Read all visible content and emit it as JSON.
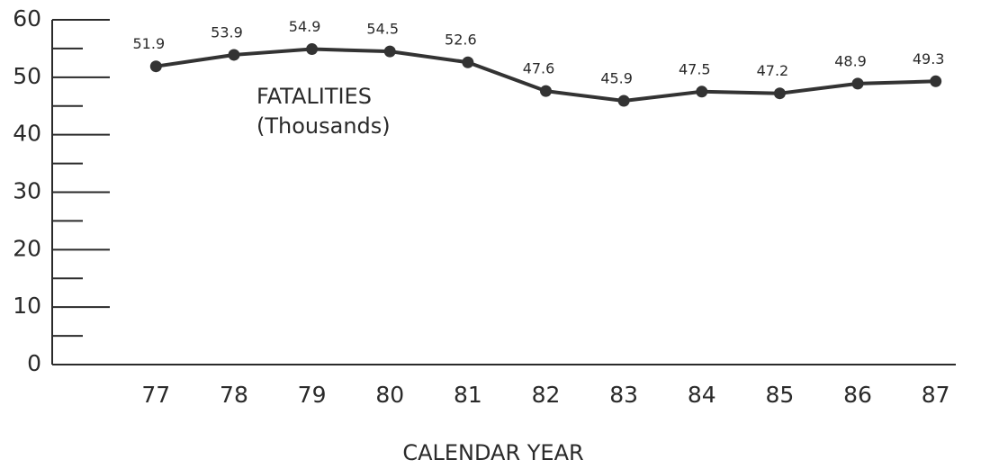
{
  "chart_data": {
    "type": "line",
    "annotation": [
      "FATALITIES",
      "(Thousands)"
    ],
    "x_label": "CALENDAR YEAR",
    "categories": [
      "77",
      "78",
      "79",
      "80",
      "81",
      "82",
      "83",
      "84",
      "85",
      "86",
      "87"
    ],
    "values": [
      51.9,
      53.9,
      54.9,
      54.5,
      52.6,
      47.6,
      45.9,
      47.5,
      47.2,
      48.9,
      49.3
    ],
    "color": "#333333",
    "ylim": [
      0,
      60
    ],
    "yticks": [
      0,
      10,
      20,
      30,
      40,
      50,
      60
    ],
    "yticks_minor": [
      5,
      15,
      25,
      35,
      45,
      55
    ]
  }
}
